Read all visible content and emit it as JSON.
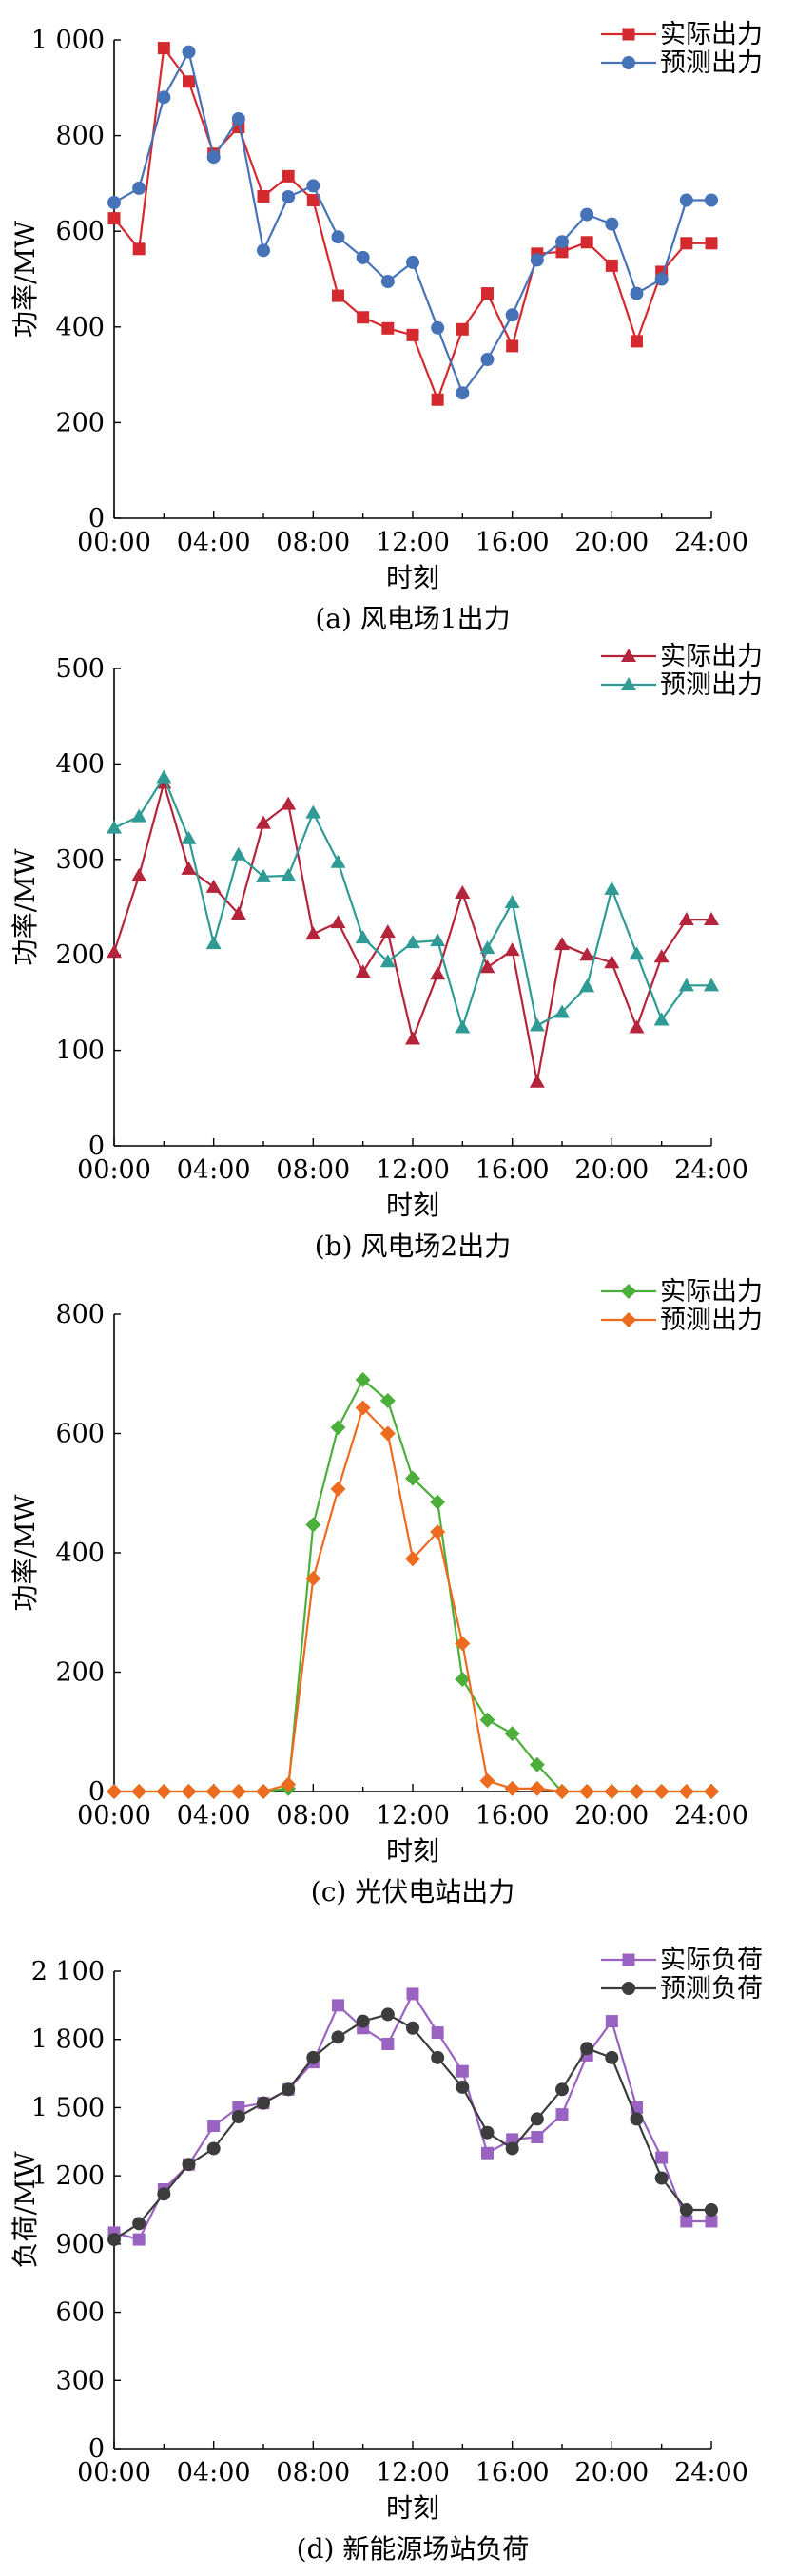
{
  "chart_data": [
    {
      "type": "line",
      "caption": "(a) 风电场1出力",
      "xlabel": "时刻",
      "ylabel": "功率/MW",
      "x_ticks": [
        "00:00",
        "04:00",
        "08:00",
        "12:00",
        "16:00",
        "20:00",
        "24:00"
      ],
      "y_ticks": [
        "0",
        "200",
        "400",
        "600",
        "800",
        "1 000"
      ],
      "ylim": [
        0,
        1000
      ],
      "xlim": [
        0,
        24
      ],
      "x": [
        0,
        1,
        2,
        3,
        4,
        5,
        6,
        7,
        8,
        9,
        10,
        11,
        12,
        13,
        14,
        15,
        16,
        17,
        18,
        19,
        20,
        21,
        22,
        23,
        24
      ],
      "legend_position": "top-right",
      "series": [
        {
          "name": "实际出力",
          "color": "#d42a2f",
          "marker": "square",
          "values": [
            627,
            563,
            983,
            913,
            762,
            818,
            673,
            715,
            665,
            465,
            420,
            397,
            383,
            248,
            395,
            470,
            360,
            553,
            557,
            577,
            528,
            370,
            515,
            575,
            575
          ]
        },
        {
          "name": "预测出力",
          "color": "#4672b8",
          "marker": "circle",
          "values": [
            660,
            690,
            880,
            975,
            755,
            835,
            560,
            672,
            695,
            588,
            545,
            495,
            535,
            398,
            262,
            332,
            425,
            540,
            578,
            635,
            615,
            470,
            500,
            665,
            665
          ]
        }
      ]
    },
    {
      "type": "line",
      "caption": "(b) 风电场2出力",
      "xlabel": "时刻",
      "ylabel": "功率/MW",
      "x_ticks": [
        "00:00",
        "04:00",
        "08:00",
        "12:00",
        "16:00",
        "20:00",
        "24:00"
      ],
      "y_ticks": [
        "0",
        "100",
        "200",
        "300",
        "400",
        "500"
      ],
      "ylim": [
        0,
        500
      ],
      "xlim": [
        0,
        24
      ],
      "x": [
        0,
        1,
        2,
        3,
        4,
        5,
        6,
        7,
        8,
        9,
        10,
        11,
        12,
        13,
        14,
        15,
        16,
        17,
        18,
        19,
        20,
        21,
        22,
        23,
        24
      ],
      "legend_position": "top-right",
      "series": [
        {
          "name": "实际出力",
          "color": "#b4243a",
          "marker": "triangle",
          "values": [
            203,
            283,
            380,
            290,
            271,
            243,
            338,
            358,
            222,
            234,
            182,
            224,
            112,
            180,
            265,
            187,
            205,
            67,
            211,
            200,
            192,
            124,
            198,
            237,
            237
          ]
        },
        {
          "name": "预测出力",
          "color": "#2f9b94",
          "marker": "triangle",
          "values": [
            333,
            345,
            386,
            322,
            212,
            305,
            282,
            283,
            349,
            297,
            218,
            193,
            213,
            215,
            124,
            207,
            255,
            126,
            140,
            167,
            269,
            201,
            132,
            168,
            168
          ]
        }
      ]
    },
    {
      "type": "line",
      "caption": "(c) 光伏电站出力",
      "xlabel": "时刻",
      "ylabel": "功率/MW",
      "x_ticks": [
        "00:00",
        "04:00",
        "08:00",
        "12:00",
        "16:00",
        "20:00",
        "24:00"
      ],
      "y_ticks": [
        "0",
        "200",
        "400",
        "600",
        "800"
      ],
      "ylim": [
        0,
        800
      ],
      "xlim": [
        0,
        24
      ],
      "x": [
        0,
        1,
        2,
        3,
        4,
        5,
        6,
        7,
        8,
        9,
        10,
        11,
        12,
        13,
        14,
        15,
        16,
        17,
        18,
        19,
        20,
        21,
        22,
        23,
        24
      ],
      "legend_position": "top-right",
      "series": [
        {
          "name": "实际出力",
          "color": "#4caf3b",
          "marker": "diamond",
          "values": [
            0,
            0,
            0,
            0,
            0,
            0,
            0,
            5,
            447,
            610,
            690,
            655,
            525,
            485,
            188,
            120,
            97,
            45,
            0,
            0,
            0,
            0,
            0,
            0,
            0
          ]
        },
        {
          "name": "预测出力",
          "color": "#ec6b1e",
          "marker": "diamond",
          "values": [
            0,
            0,
            0,
            0,
            0,
            0,
            0,
            12,
            357,
            507,
            643,
            600,
            390,
            435,
            248,
            18,
            5,
            5,
            0,
            0,
            0,
            0,
            0,
            0,
            0
          ]
        }
      ]
    },
    {
      "type": "line",
      "caption": "(d) 新能源场站负荷",
      "xlabel": "时刻",
      "ylabel": "负荷/MW",
      "x_ticks": [
        "00:00",
        "04:00",
        "08:00",
        "12:00",
        "16:00",
        "20:00",
        "24:00"
      ],
      "y_ticks": [
        "0",
        "300",
        "600",
        "900",
        "1 200",
        "1 500",
        "1 800",
        "2 100"
      ],
      "ylim": [
        0,
        2100
      ],
      "xlim": [
        0,
        24
      ],
      "x": [
        0,
        1,
        2,
        3,
        4,
        5,
        6,
        7,
        8,
        9,
        10,
        11,
        12,
        13,
        14,
        15,
        16,
        17,
        18,
        19,
        20,
        21,
        22,
        23,
        24
      ],
      "legend_position": "top-right",
      "series": [
        {
          "name": "实际负荷",
          "color": "#9b63c1",
          "marker": "square",
          "values": [
            950,
            920,
            1140,
            1250,
            1420,
            1500,
            1520,
            1580,
            1700,
            1950,
            1850,
            1780,
            2000,
            1830,
            1660,
            1300,
            1360,
            1370,
            1470,
            1730,
            1880,
            1500,
            1280,
            1000,
            1000
          ]
        },
        {
          "name": "预测负荷",
          "color": "#3c3c3c",
          "marker": "circle",
          "values": [
            920,
            990,
            1120,
            1250,
            1320,
            1460,
            1520,
            1580,
            1720,
            1810,
            1880,
            1910,
            1850,
            1720,
            1590,
            1390,
            1320,
            1450,
            1580,
            1760,
            1720,
            1450,
            1190,
            1050,
            1050
          ]
        }
      ]
    }
  ]
}
